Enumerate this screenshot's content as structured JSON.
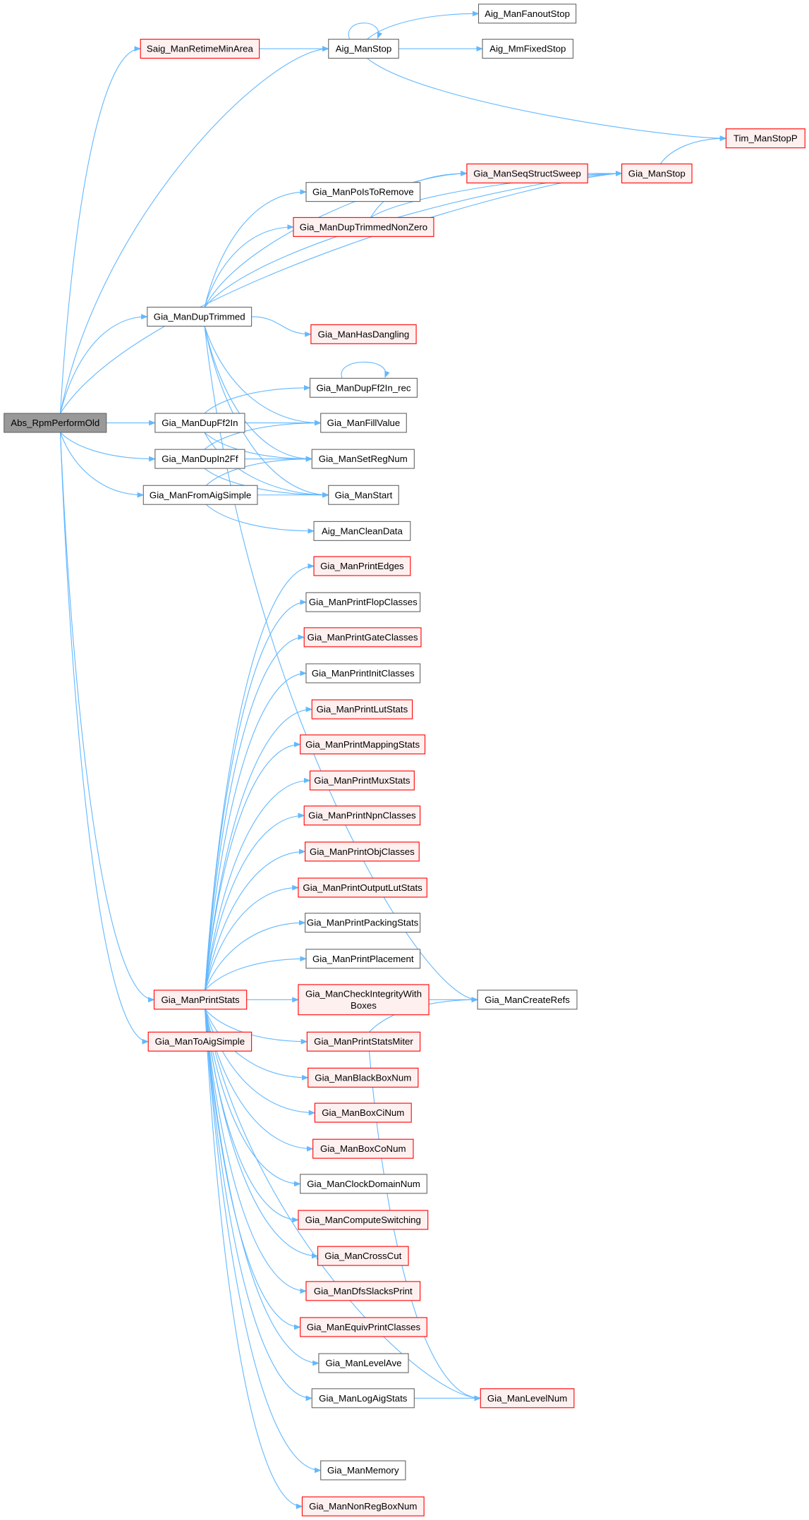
{
  "colors": {
    "edge": "#63b8ff",
    "current_fill": "#999999",
    "current_border": "#666666",
    "truncated_fill": "#fff0f0",
    "truncated_border": "#ff0000",
    "normal_fill": "#ffffff",
    "normal_border": "#666666"
  },
  "nodes": [
    {
      "id": "abs",
      "label": "Abs_RpmPerformOld",
      "kind": "current"
    },
    {
      "id": "saig",
      "label": "Saig_ManRetimeMinArea",
      "kind": "truncated"
    },
    {
      "id": "aigstop",
      "label": "Aig_ManStop",
      "kind": "normal"
    },
    {
      "id": "fanout",
      "label": "Aig_ManFanoutStop",
      "kind": "normal"
    },
    {
      "id": "mmfixed",
      "label": "Aig_MmFixedStop",
      "kind": "normal"
    },
    {
      "id": "tim",
      "label": "Tim_ManStopP",
      "kind": "truncated"
    },
    {
      "id": "seq",
      "label": "Gia_ManSeqStructSweep",
      "kind": "truncated"
    },
    {
      "id": "giastop",
      "label": "Gia_ManStop",
      "kind": "truncated"
    },
    {
      "id": "pois",
      "label": "Gia_ManPoIsToRemove",
      "kind": "normal"
    },
    {
      "id": "nonzero",
      "label": "Gia_ManDupTrimmedNonZero",
      "kind": "truncated"
    },
    {
      "id": "duptrim",
      "label": "Gia_ManDupTrimmed",
      "kind": "normal"
    },
    {
      "id": "dangling",
      "label": "Gia_ManHasDangling",
      "kind": "truncated"
    },
    {
      "id": "ff2inrec",
      "label": "Gia_ManDupFf2In_rec",
      "kind": "normal"
    },
    {
      "id": "ff2in",
      "label": "Gia_ManDupFf2In",
      "kind": "normal"
    },
    {
      "id": "fill",
      "label": "Gia_ManFillValue",
      "kind": "normal"
    },
    {
      "id": "in2ff",
      "label": "Gia_ManDupIn2Ff",
      "kind": "normal"
    },
    {
      "id": "setreg",
      "label": "Gia_ManSetRegNum",
      "kind": "normal"
    },
    {
      "id": "fromaig",
      "label": "Gia_ManFromAigSimple",
      "kind": "normal"
    },
    {
      "id": "start",
      "label": "Gia_ManStart",
      "kind": "normal"
    },
    {
      "id": "clean",
      "label": "Aig_ManCleanData",
      "kind": "normal"
    },
    {
      "id": "edges",
      "label": "Gia_ManPrintEdges",
      "kind": "truncated"
    },
    {
      "id": "flop",
      "label": "Gia_ManPrintFlopClasses",
      "kind": "normal"
    },
    {
      "id": "gate",
      "label": "Gia_ManPrintGateClasses",
      "kind": "truncated"
    },
    {
      "id": "init",
      "label": "Gia_ManPrintInitClasses",
      "kind": "normal"
    },
    {
      "id": "lut",
      "label": "Gia_ManPrintLutStats",
      "kind": "truncated"
    },
    {
      "id": "mapping",
      "label": "Gia_ManPrintMappingStats",
      "kind": "truncated"
    },
    {
      "id": "mux",
      "label": "Gia_ManPrintMuxStats",
      "kind": "truncated"
    },
    {
      "id": "npn",
      "label": "Gia_ManPrintNpnClasses",
      "kind": "truncated"
    },
    {
      "id": "obj",
      "label": "Gia_ManPrintObjClasses",
      "kind": "truncated"
    },
    {
      "id": "outlut",
      "label": "Gia_ManPrintOutputLutStats",
      "kind": "truncated"
    },
    {
      "id": "packing",
      "label": "Gia_ManPrintPackingStats",
      "kind": "normal"
    },
    {
      "id": "placement",
      "label": "Gia_ManPrintPlacement",
      "kind": "normal"
    },
    {
      "id": "printstats",
      "label": "Gia_ManPrintStats",
      "kind": "truncated"
    },
    {
      "id": "check",
      "label": "Gia_ManCheckIntegrityWith\nBoxes",
      "kind": "truncated"
    },
    {
      "id": "refs",
      "label": "Gia_ManCreateRefs",
      "kind": "normal"
    },
    {
      "id": "toaig",
      "label": "Gia_ManToAigSimple",
      "kind": "truncated"
    },
    {
      "id": "miter",
      "label": "Gia_ManPrintStatsMiter",
      "kind": "truncated"
    },
    {
      "id": "blackbox",
      "label": "Gia_ManBlackBoxNum",
      "kind": "truncated"
    },
    {
      "id": "boxci",
      "label": "Gia_ManBoxCiNum",
      "kind": "truncated"
    },
    {
      "id": "boxco",
      "label": "Gia_ManBoxCoNum",
      "kind": "truncated"
    },
    {
      "id": "clock",
      "label": "Gia_ManClockDomainNum",
      "kind": "normal"
    },
    {
      "id": "switch",
      "label": "Gia_ManComputeSwitching",
      "kind": "truncated"
    },
    {
      "id": "cross",
      "label": "Gia_ManCrossCut",
      "kind": "truncated"
    },
    {
      "id": "dfs",
      "label": "Gia_ManDfsSlacksPrint",
      "kind": "truncated"
    },
    {
      "id": "equiv",
      "label": "Gia_ManEquivPrintClasses",
      "kind": "truncated"
    },
    {
      "id": "levelave",
      "label": "Gia_ManLevelAve",
      "kind": "normal"
    },
    {
      "id": "logaig",
      "label": "Gia_ManLogAigStats",
      "kind": "normal"
    },
    {
      "id": "levelnum",
      "label": "Gia_ManLevelNum",
      "kind": "truncated"
    },
    {
      "id": "memory",
      "label": "Gia_ManMemory",
      "kind": "normal"
    },
    {
      "id": "nonreg",
      "label": "Gia_ManNonRegBoxNum",
      "kind": "truncated"
    }
  ],
  "edges": [
    [
      "abs",
      "saig"
    ],
    [
      "abs",
      "aigstop"
    ],
    [
      "abs",
      "giastop"
    ],
    [
      "abs",
      "duptrim"
    ],
    [
      "abs",
      "ff2in"
    ],
    [
      "abs",
      "in2ff"
    ],
    [
      "abs",
      "fromaig"
    ],
    [
      "abs",
      "printstats"
    ],
    [
      "abs",
      "toaig"
    ],
    [
      "saig",
      "aigstop"
    ],
    [
      "aigstop",
      "aigstop"
    ],
    [
      "aigstop",
      "fanout"
    ],
    [
      "aigstop",
      "mmfixed"
    ],
    [
      "aigstop",
      "tim"
    ],
    [
      "giastop",
      "tim"
    ],
    [
      "seq",
      "giastop"
    ],
    [
      "nonzero",
      "seq"
    ],
    [
      "nonzero",
      "giastop"
    ],
    [
      "duptrim",
      "seq"
    ],
    [
      "duptrim",
      "giastop"
    ],
    [
      "duptrim",
      "pois"
    ],
    [
      "duptrim",
      "nonzero"
    ],
    [
      "duptrim",
      "dangling"
    ],
    [
      "duptrim",
      "fill"
    ],
    [
      "duptrim",
      "setreg"
    ],
    [
      "duptrim",
      "start"
    ],
    [
      "duptrim",
      "refs"
    ],
    [
      "ff2inrec",
      "ff2inrec"
    ],
    [
      "ff2in",
      "ff2inrec"
    ],
    [
      "ff2in",
      "fill"
    ],
    [
      "ff2in",
      "setreg"
    ],
    [
      "ff2in",
      "start"
    ],
    [
      "in2ff",
      "fill"
    ],
    [
      "in2ff",
      "setreg"
    ],
    [
      "in2ff",
      "start"
    ],
    [
      "fromaig",
      "setreg"
    ],
    [
      "fromaig",
      "start"
    ],
    [
      "fromaig",
      "clean"
    ],
    [
      "printstats",
      "edges"
    ],
    [
      "printstats",
      "flop"
    ],
    [
      "printstats",
      "gate"
    ],
    [
      "printstats",
      "init"
    ],
    [
      "printstats",
      "lut"
    ],
    [
      "printstats",
      "mapping"
    ],
    [
      "printstats",
      "mux"
    ],
    [
      "printstats",
      "npn"
    ],
    [
      "printstats",
      "obj"
    ],
    [
      "printstats",
      "outlut"
    ],
    [
      "printstats",
      "packing"
    ],
    [
      "printstats",
      "placement"
    ],
    [
      "printstats",
      "check"
    ],
    [
      "printstats",
      "miter"
    ],
    [
      "printstats",
      "blackbox"
    ],
    [
      "printstats",
      "boxci"
    ],
    [
      "printstats",
      "boxco"
    ],
    [
      "printstats",
      "clock"
    ],
    [
      "printstats",
      "switch"
    ],
    [
      "printstats",
      "cross"
    ],
    [
      "printstats",
      "dfs"
    ],
    [
      "printstats",
      "equiv"
    ],
    [
      "printstats",
      "levelave"
    ],
    [
      "printstats",
      "logaig"
    ],
    [
      "printstats",
      "levelnum"
    ],
    [
      "printstats",
      "memory"
    ],
    [
      "printstats",
      "nonreg"
    ],
    [
      "check",
      "refs"
    ],
    [
      "miter",
      "refs"
    ],
    [
      "miter",
      "levelnum"
    ],
    [
      "logaig",
      "levelnum"
    ]
  ]
}
